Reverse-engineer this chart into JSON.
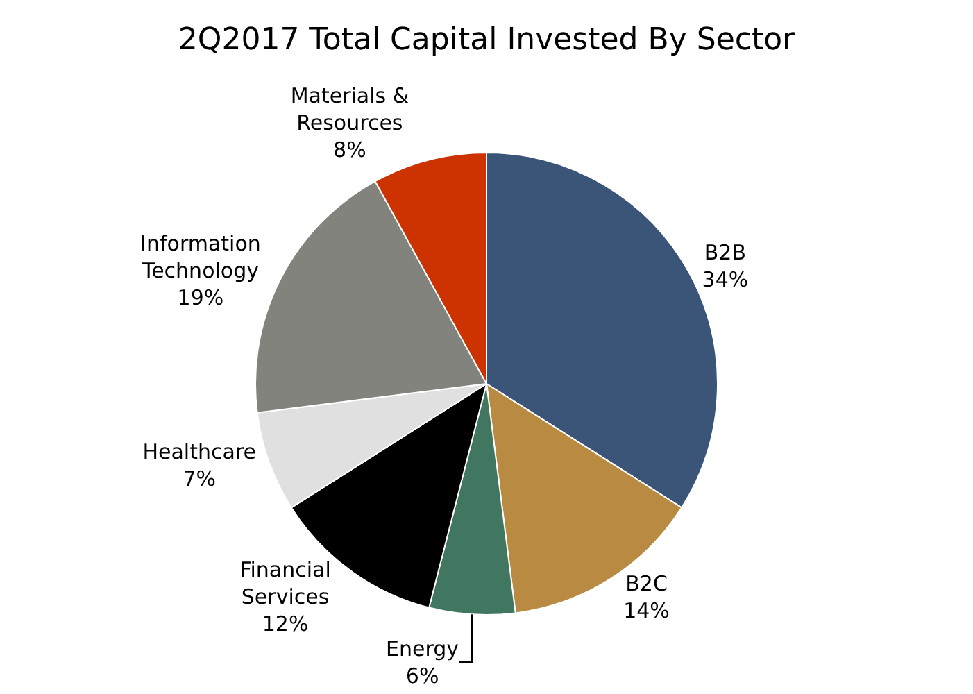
{
  "chart_data": {
    "type": "pie",
    "title": "2Q2017 Total Capital Invested By Sector",
    "categories": [
      "B2B",
      "B2C",
      "Energy",
      "Financial Services",
      "Healthcare",
      "Information Technology",
      "Materials & Resources"
    ],
    "values": [
      34,
      14,
      6,
      12,
      7,
      19,
      8
    ],
    "value_labels": [
      "34%",
      "14%",
      "6%",
      "12%",
      "7%",
      "19%",
      "8%"
    ],
    "colors": [
      "#3a5578",
      "#b98b42",
      "#417760",
      "#000000",
      "#e0e0e0",
      "#82837c",
      "#cc3300"
    ],
    "legend": false
  }
}
